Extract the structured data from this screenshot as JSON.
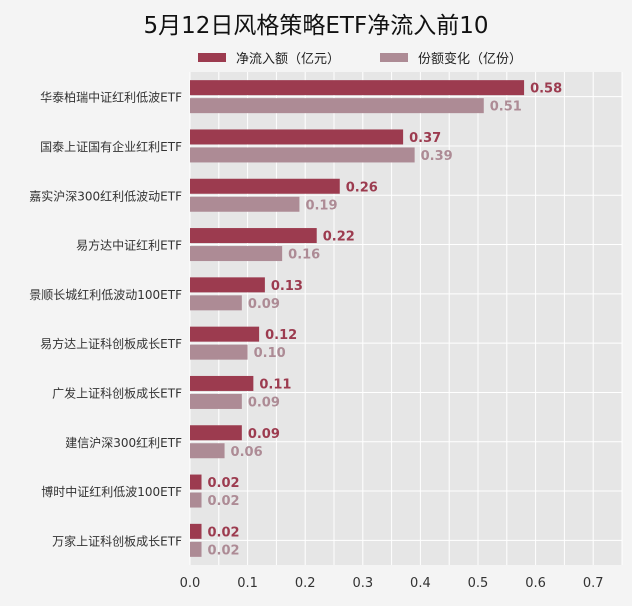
{
  "chart_data": {
    "type": "bar",
    "orientation": "horizontal",
    "title": "5月12日风格策略ETF净流入前10",
    "categories": [
      "华泰柏瑞中证红利低波ETF",
      "国泰上证国有企业红利ETF",
      "嘉实沪深300红利低波动ETF",
      "易方达中证红利ETF",
      "景顺长城红利低波动100ETF",
      "易方达上证科创板成长ETF",
      "广发上证科创板成长ETF",
      "建信沪深300红利ETF",
      "博时中证红利低波100ETF",
      "万家上证科创板成长ETF"
    ],
    "series": [
      {
        "name": "净流入额（亿元）",
        "color": "#9c3b4f",
        "values": [
          0.58,
          0.37,
          0.26,
          0.22,
          0.13,
          0.12,
          0.11,
          0.09,
          0.02,
          0.02
        ]
      },
      {
        "name": "份额变化（亿份）",
        "color": "#ad8b95",
        "values": [
          0.51,
          0.39,
          0.19,
          0.16,
          0.09,
          0.1,
          0.09,
          0.06,
          0.02,
          0.02
        ]
      }
    ],
    "xlim": [
      0,
      0.75
    ],
    "xticks": [
      "0.0",
      "0.1",
      "0.2",
      "0.3",
      "0.4",
      "0.5",
      "0.6",
      "0.7"
    ],
    "xlabel": "",
    "ylabel": "",
    "grid": true,
    "legend_position": "top",
    "value_labels": true
  }
}
